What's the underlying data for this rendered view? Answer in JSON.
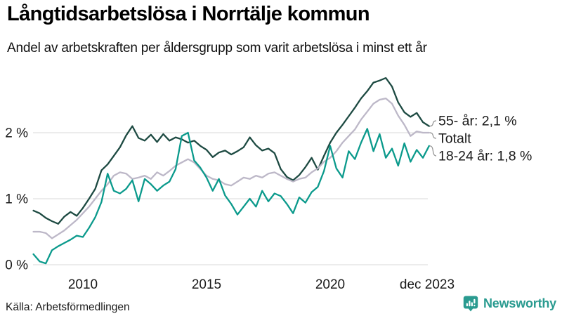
{
  "header": {
    "title": "Långtidsarbetslösa i Norrtälje kommun",
    "subtitle": "Andel av arbetskraften per åldersgrupp som varit arbetslösa i minst ett år"
  },
  "footer": {
    "source": "Källa: Arbetsförmedlingen",
    "brand": "Newsworthy",
    "brand_color": "#2a9b90",
    "brand_icon": "newsworthy-bar-chart-bubble-icon"
  },
  "chart_data": {
    "type": "line",
    "title": "Långtidsarbetslösa i Norrtälje kommun",
    "subtitle": "Andel av arbetskraften per åldersgrupp som varit arbetslösa i minst ett år",
    "x_unit": "year (monthly series), 2008 – dec 2023",
    "y_unit": "percent of labour force",
    "grid": true,
    "ylim": [
      0,
      3
    ],
    "x_start": 2008.0,
    "x_step": 0.25,
    "x_axis": {
      "ticks": [
        {
          "value": 2010,
          "label": "2010"
        },
        {
          "value": 2015,
          "label": "2015"
        },
        {
          "value": 2020,
          "label": "2020"
        },
        {
          "value": 2023.92,
          "label": "dec 2023"
        }
      ]
    },
    "y_axis": {
      "ticks": [
        {
          "value": 0,
          "label": "0 %"
        },
        {
          "value": 1,
          "label": "1 %"
        },
        {
          "value": 2,
          "label": "2 %"
        }
      ]
    },
    "series": [
      {
        "name": "55- år",
        "end_label": "55- år: 2,1 %",
        "end_value": "2,1 %",
        "color": "#1d4a42",
        "values": [
          0.82,
          0.78,
          0.71,
          0.66,
          0.62,
          0.73,
          0.8,
          0.74,
          0.86,
          1.0,
          1.15,
          1.43,
          1.52,
          1.65,
          1.78,
          1.96,
          2.1,
          1.92,
          1.88,
          1.97,
          1.86,
          1.98,
          1.88,
          1.93,
          1.9,
          1.85,
          1.88,
          1.8,
          1.74,
          1.63,
          1.7,
          1.73,
          1.67,
          1.72,
          1.78,
          1.93,
          1.81,
          1.73,
          1.76,
          1.69,
          1.45,
          1.33,
          1.28,
          1.36,
          1.48,
          1.62,
          1.44,
          1.65,
          1.85,
          2.0,
          2.12,
          2.25,
          2.38,
          2.52,
          2.63,
          2.76,
          2.79,
          2.83,
          2.7,
          2.46,
          2.31,
          2.24,
          2.3,
          2.16,
          2.1
        ]
      },
      {
        "name": "Totalt",
        "end_label": "Totalt",
        "end_value": "2,0 %",
        "color": "#bdb8c8",
        "values": [
          0.5,
          0.5,
          0.48,
          0.4,
          0.46,
          0.52,
          0.6,
          0.68,
          0.78,
          0.88,
          1.0,
          1.12,
          1.22,
          1.35,
          1.4,
          1.38,
          1.3,
          1.32,
          1.35,
          1.3,
          1.4,
          1.35,
          1.42,
          1.5,
          1.55,
          1.6,
          1.55,
          1.45,
          1.35,
          1.3,
          1.28,
          1.22,
          1.2,
          1.26,
          1.32,
          1.3,
          1.35,
          1.32,
          1.38,
          1.4,
          1.35,
          1.3,
          1.26,
          1.3,
          1.32,
          1.4,
          1.46,
          1.56,
          1.62,
          1.72,
          1.85,
          1.95,
          2.05,
          2.2,
          2.32,
          2.44,
          2.5,
          2.52,
          2.44,
          2.26,
          2.12,
          1.95,
          2.02,
          2.0,
          2.0
        ]
      },
      {
        "name": "18-24 år",
        "end_label": "18-24 år: 1,8 %",
        "end_value": "1,8 %",
        "color": "#0b9a8c",
        "values": [
          0.16,
          0.05,
          0.02,
          0.22,
          0.28,
          0.33,
          0.38,
          0.44,
          0.42,
          0.56,
          0.72,
          0.95,
          1.38,
          1.12,
          1.08,
          1.15,
          1.28,
          0.96,
          1.3,
          1.22,
          1.12,
          1.2,
          1.26,
          1.45,
          1.95,
          2.0,
          1.58,
          1.47,
          1.32,
          1.12,
          1.3,
          1.05,
          0.92,
          0.76,
          0.88,
          1.0,
          0.88,
          1.12,
          0.96,
          1.08,
          1.04,
          0.92,
          0.78,
          1.02,
          0.94,
          1.1,
          1.18,
          1.42,
          1.8,
          1.46,
          1.32,
          1.72,
          1.6,
          1.85,
          2.06,
          1.72,
          1.98,
          1.62,
          1.76,
          1.5,
          1.84,
          1.56,
          1.74,
          1.62,
          1.8
        ]
      }
    ]
  }
}
